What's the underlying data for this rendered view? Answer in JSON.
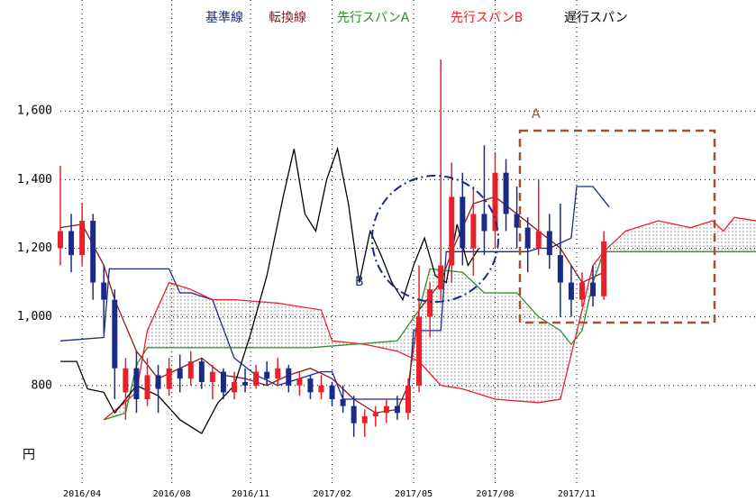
{
  "chart_data": {
    "type": "ichimoku",
    "y_unit_label": "円",
    "xlim": [
      0,
      128
    ],
    "ylim": [
      500,
      1900
    ],
    "xticks": [
      {
        "value": 4,
        "label": "2016/04"
      },
      {
        "value": 20.5,
        "label": "2016/08"
      },
      {
        "value": 35,
        "label": "2016/11"
      },
      {
        "value": 50,
        "label": "2017/02"
      },
      {
        "value": 65,
        "label": "2017/05"
      },
      {
        "value": 80,
        "label": "2017/08"
      },
      {
        "value": 95,
        "label": "2017/11"
      }
    ],
    "yticks": [
      {
        "value": 800,
        "label": "800"
      },
      {
        "value": 1000,
        "label": "1,000"
      },
      {
        "value": 1200,
        "label": "1,200"
      },
      {
        "value": 1400,
        "label": "1,400"
      },
      {
        "value": 1600,
        "label": "1,600"
      }
    ],
    "grid": true,
    "candles": {
      "up_color": "#e8202a",
      "down_color": "#1a2a8a",
      "x": [
        0,
        2,
        4,
        6,
        8,
        10,
        12,
        14,
        16,
        18,
        20,
        22,
        24,
        26,
        28,
        30,
        32,
        34,
        36,
        38,
        40,
        42,
        44,
        46,
        48,
        50,
        52,
        54,
        56,
        58,
        60,
        62,
        64,
        66,
        68,
        70,
        72,
        74,
        76,
        78,
        80,
        82,
        84,
        86,
        88,
        90,
        92,
        94,
        96,
        98,
        100
      ],
      "open": [
        1200,
        1250,
        1180,
        1280,
        1100,
        1050,
        780,
        850,
        760,
        830,
        790,
        850,
        820,
        870,
        810,
        840,
        780,
        810,
        800,
        840,
        820,
        850,
        800,
        820,
        780,
        800,
        760,
        740,
        690,
        710,
        720,
        740,
        720,
        800,
        1000,
        1080,
        1150,
        1350,
        1200,
        1300,
        1250,
        1420,
        1300,
        1260,
        1200,
        1250,
        1180,
        1100,
        1050,
        1100,
        1060
      ],
      "high": [
        1440,
        1300,
        1330,
        1300,
        1150,
        1080,
        880,
        900,
        880,
        860,
        880,
        890,
        900,
        880,
        860,
        850,
        840,
        850,
        860,
        870,
        880,
        860,
        840,
        830,
        830,
        810,
        800,
        770,
        730,
        740,
        760,
        770,
        820,
        1150,
        1100,
        1750,
        1450,
        1420,
        1380,
        1500,
        1480,
        1460,
        1380,
        1290,
        1400,
        1300,
        1330,
        1150,
        1130,
        1150,
        1250
      ],
      "low": [
        1150,
        1130,
        1150,
        1050,
        950,
        760,
        700,
        720,
        740,
        720,
        770,
        780,
        800,
        790,
        760,
        760,
        760,
        780,
        790,
        800,
        800,
        780,
        770,
        760,
        760,
        740,
        720,
        650,
        650,
        680,
        690,
        700,
        700,
        780,
        940,
        1050,
        1100,
        1150,
        1120,
        1180,
        1200,
        1250,
        1200,
        1130,
        1180,
        1140,
        1000,
        1000,
        1030,
        1030,
        1050
      ],
      "close": [
        1250,
        1180,
        1280,
        1100,
        1050,
        850,
        850,
        760,
        830,
        790,
        850,
        820,
        870,
        810,
        840,
        780,
        810,
        800,
        840,
        820,
        850,
        800,
        820,
        780,
        800,
        760,
        740,
        690,
        710,
        720,
        740,
        720,
        800,
        1000,
        1080,
        1150,
        1350,
        1200,
        1300,
        1250,
        1420,
        1300,
        1260,
        1200,
        1250,
        1180,
        1100,
        1050,
        1100,
        1060,
        1220
      ]
    },
    "series": [
      {
        "name": "基準線",
        "color": "#1a2a8a",
        "x": [
          0,
          8,
          9,
          12,
          20,
          22,
          24,
          28,
          32,
          36,
          40,
          44,
          48,
          50,
          52,
          64,
          65,
          66,
          70,
          71,
          72,
          86,
          88,
          90,
          94,
          95,
          98,
          101
        ],
        "values": [
          930,
          940,
          1140,
          1140,
          1140,
          1070,
          1070,
          1050,
          880,
          830,
          800,
          820,
          840,
          840,
          760,
          760,
          960,
          960,
          960,
          1190,
          1190,
          1190,
          1200,
          1200,
          1230,
          1380,
          1380,
          1320
        ]
      },
      {
        "name": "転換線",
        "color": "#8b1a1a",
        "x": [
          0,
          4,
          8,
          10,
          14,
          18,
          22,
          26,
          30,
          34,
          38,
          42,
          46,
          50,
          54,
          58,
          62,
          64,
          66,
          70,
          72,
          76,
          80,
          84,
          88,
          92,
          96,
          100
        ],
        "values": [
          1260,
          1270,
          1150,
          1050,
          900,
          820,
          850,
          880,
          830,
          820,
          800,
          830,
          850,
          820,
          760,
          720,
          730,
          800,
          1020,
          1100,
          1190,
          1330,
          1350,
          1300,
          1250,
          1200,
          1100,
          1130
        ]
      },
      {
        "name": "先行スパンA",
        "color": "#2e8b2e",
        "x": [
          8,
          12,
          14,
          16,
          30,
          46,
          62,
          66,
          68,
          74,
          78,
          84,
          88,
          92,
          94,
          96,
          98,
          100,
          128
        ],
        "values": [
          700,
          720,
          860,
          910,
          910,
          910,
          930,
          1020,
          1140,
          1130,
          1070,
          1070,
          1000,
          960,
          920,
          960,
          1100,
          1190,
          1190
        ]
      },
      {
        "name": "先行スパンB",
        "color": "#e8202a",
        "x": [
          8,
          14,
          16,
          20,
          24,
          28,
          32,
          40,
          48,
          50,
          56,
          62,
          66,
          70,
          74,
          80,
          88,
          92,
          96,
          98,
          100,
          104,
          110,
          116,
          120,
          122,
          124,
          128
        ],
        "values": [
          700,
          780,
          960,
          1100,
          1080,
          1050,
          1050,
          1040,
          1020,
          930,
          920,
          900,
          870,
          800,
          790,
          760,
          750,
          760,
          1020,
          1150,
          1190,
          1250,
          1280,
          1260,
          1280,
          1250,
          1290,
          1280
        ]
      },
      {
        "name": "遅行スパン",
        "color": "#000000",
        "x": [
          0,
          3,
          5,
          8,
          10,
          14,
          18,
          22,
          26,
          29,
          32,
          35,
          38,
          41,
          43,
          45,
          47,
          49,
          51,
          53,
          55,
          57,
          59,
          61,
          63,
          65,
          67,
          69,
          71,
          73,
          75,
          77
        ],
        "values": [
          870,
          870,
          790,
          780,
          720,
          800,
          770,
          700,
          660,
          750,
          800,
          950,
          1120,
          1350,
          1490,
          1300,
          1250,
          1400,
          1490,
          1330,
          1100,
          1250,
          1180,
          1100,
          1050,
          1150,
          1230,
          1120,
          1100,
          1270,
          1150,
          1200
        ]
      }
    ],
    "annotations": [
      {
        "text": "A"
      },
      {
        "text": "B"
      }
    ]
  }
}
